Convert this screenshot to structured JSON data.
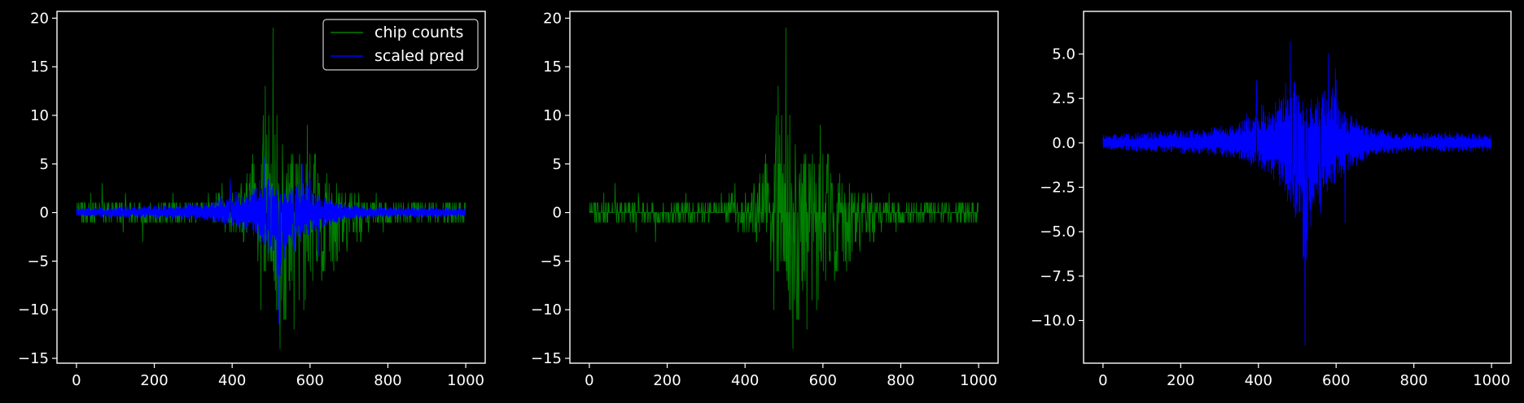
{
  "chart_data": [
    {
      "type": "line",
      "panel": "left",
      "xlim": [
        -50,
        1050
      ],
      "ylim": [
        -15.5,
        20.7
      ],
      "xticks": [
        0,
        200,
        400,
        600,
        800,
        1000
      ],
      "yticks": [
        -15,
        -10,
        -5,
        0,
        5,
        10,
        15,
        20
      ],
      "legend": {
        "placement": "top-right",
        "entries": [
          "chip counts",
          "scaled pred"
        ]
      },
      "series": [
        {
          "name": "chip counts",
          "color": "#008000",
          "count": 1000,
          "envelope_upper": [
            [
              0,
              1
            ],
            [
              100,
              1
            ],
            [
              200,
              1
            ],
            [
              300,
              1
            ],
            [
              350,
              2
            ],
            [
              400,
              2
            ],
            [
              440,
              4
            ],
            [
              470,
              10
            ],
            [
              485,
              13
            ],
            [
              500,
              9
            ],
            [
              510,
              19
            ],
            [
              530,
              6
            ],
            [
              560,
              6
            ],
            [
              590,
              7
            ],
            [
              600,
              9
            ],
            [
              630,
              4
            ],
            [
              680,
              3
            ],
            [
              750,
              1
            ],
            [
              900,
              1
            ],
            [
              999,
              1
            ]
          ],
          "envelope_lower": [
            [
              0,
              -1
            ],
            [
              100,
              -1
            ],
            [
              200,
              -1
            ],
            [
              300,
              -1
            ],
            [
              350,
              -1
            ],
            [
              400,
              -2
            ],
            [
              440,
              -3
            ],
            [
              470,
              -5
            ],
            [
              500,
              -8
            ],
            [
              520,
              -14
            ],
            [
              540,
              -11
            ],
            [
              570,
              -8
            ],
            [
              600,
              -10
            ],
            [
              640,
              -6
            ],
            [
              680,
              -5
            ],
            [
              750,
              -2
            ],
            [
              900,
              -1
            ],
            [
              999,
              -1
            ]
          ],
          "spikes": [
            [
              37,
              2
            ],
            [
              47,
              -1
            ],
            [
              66,
              3
            ],
            [
              120,
              -2
            ],
            [
              126,
              2
            ],
            [
              170,
              -3
            ],
            [
              248,
              2
            ],
            [
              374,
              3
            ],
            [
              437,
              -2
            ],
            [
              474,
              -10
            ],
            [
              478,
              6
            ],
            [
              485,
              13
            ],
            [
              489,
              8
            ],
            [
              498,
              -5
            ],
            [
              505,
              19
            ],
            [
              511,
              -8
            ],
            [
              515,
              10
            ],
            [
              523,
              -14
            ],
            [
              528,
              -6
            ],
            [
              533,
              -11
            ],
            [
              546,
              -7
            ],
            [
              559,
              -12
            ],
            [
              572,
              -9
            ],
            [
              584,
              -10
            ],
            [
              590,
              5
            ],
            [
              593,
              9
            ],
            [
              600,
              6
            ],
            [
              618,
              -4
            ],
            [
              631,
              -5
            ],
            [
              661,
              -6
            ],
            [
              725,
              2
            ],
            [
              770,
              2
            ],
            [
              865,
              1
            ]
          ]
        },
        {
          "name": "scaled pred",
          "color": "#0000ff",
          "count": 1000,
          "upper_band": [
            [
              0,
              0.4
            ],
            [
              100,
              0.5
            ],
            [
              200,
              0.6
            ],
            [
              300,
              0.8
            ],
            [
              350,
              1.0
            ],
            [
              400,
              2.0
            ],
            [
              430,
              1.5
            ],
            [
              460,
              2.5
            ],
            [
              480,
              4.0
            ],
            [
              500,
              2.5
            ],
            [
              520,
              1.8
            ],
            [
              560,
              2.5
            ],
            [
              590,
              3.0
            ],
            [
              620,
              1.5
            ],
            [
              680,
              0.8
            ],
            [
              750,
              0.5
            ],
            [
              900,
              0.5
            ],
            [
              999,
              0.4
            ]
          ],
          "lower_band": [
            [
              0,
              -0.3
            ],
            [
              100,
              -0.4
            ],
            [
              200,
              -0.5
            ],
            [
              300,
              -0.6
            ],
            [
              350,
              -0.8
            ],
            [
              400,
              -1.2
            ],
            [
              440,
              -1.8
            ],
            [
              480,
              -3.0
            ],
            [
              500,
              -4.0
            ],
            [
              520,
              -6.0
            ],
            [
              540,
              -3.5
            ],
            [
              570,
              -2.5
            ],
            [
              600,
              -2.0
            ],
            [
              640,
              -1.2
            ],
            [
              700,
              -0.6
            ],
            [
              800,
              -0.4
            ],
            [
              900,
              -0.4
            ],
            [
              999,
              -0.4
            ]
          ],
          "spikes": [
            [
              395,
              3.5
            ],
            [
              482,
              5.7
            ],
            [
              500,
              4
            ],
            [
              520,
              6.5
            ],
            [
              580,
              5
            ],
            [
              598,
              4.2
            ],
            [
              600,
              3.5
            ],
            [
              488,
              -2.5
            ],
            [
              500,
              -3.5
            ],
            [
              520,
              -11.4
            ],
            [
              526,
              -5.5
            ],
            [
              560,
              -4
            ],
            [
              623,
              -4.5
            ]
          ]
        }
      ]
    },
    {
      "type": "line",
      "panel": "middle",
      "xlim": [
        -50,
        1050
      ],
      "ylim": [
        -15.5,
        20.7
      ],
      "xticks": [
        0,
        200,
        400,
        600,
        800,
        1000
      ],
      "yticks": [
        -15,
        -10,
        -5,
        0,
        5,
        10,
        15,
        20
      ],
      "series": [
        {
          "color": "#008000",
          "count": 1000,
          "same_as": "chip counts"
        }
      ]
    },
    {
      "type": "line",
      "panel": "right",
      "xlim": [
        -50,
        1050
      ],
      "ylim": [
        -12.4,
        7.4
      ],
      "xticks": [
        0,
        200,
        400,
        600,
        800,
        1000
      ],
      "yticks": [
        -10.0,
        -7.5,
        -5.0,
        -2.5,
        0.0,
        2.5,
        5.0
      ],
      "series": [
        {
          "color": "#0000ff",
          "count": 1000,
          "same_as": "scaled pred"
        }
      ]
    }
  ],
  "tick_text": {
    "x": [
      "0",
      "200",
      "400",
      "600",
      "800",
      "1000"
    ],
    "y_lm": [
      "−15",
      "−10",
      "−5",
      "0",
      "5",
      "10",
      "15",
      "20"
    ],
    "y_r": [
      "−10.0",
      "−7.5",
      "−5.0",
      "−2.5",
      "0.0",
      "2.5",
      "5.0"
    ]
  },
  "colors": {
    "background": "#000000",
    "axes": "#ffffff",
    "green": "#008000",
    "blue": "#0000ff"
  }
}
